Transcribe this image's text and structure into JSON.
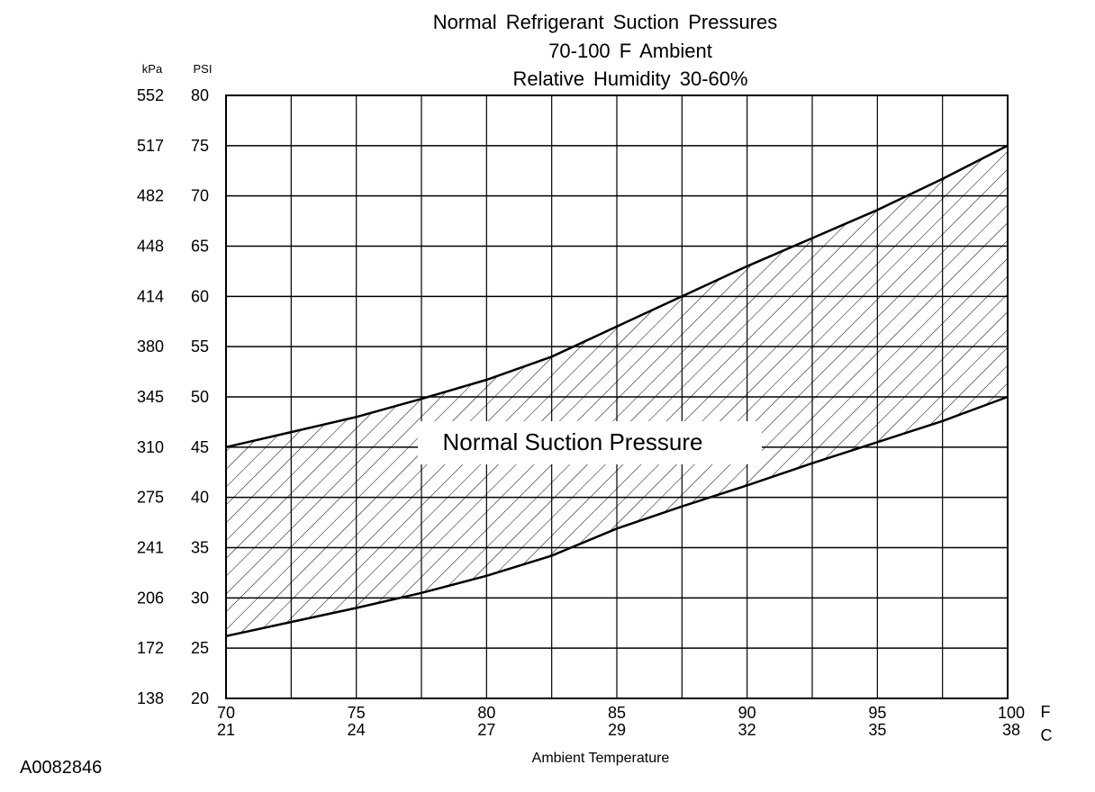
{
  "chart_data": {
    "type": "area",
    "title": "Normal Refrigerant Suction Pressures",
    "subtitle": [
      "70-100 F Ambient",
      "Relative Humidity 30-60%"
    ],
    "xlabel": "Ambient Temperature",
    "x_unit_primary": "F",
    "x_unit_secondary": "C",
    "x_ticks": [
      {
        "f": "70",
        "c": "21"
      },
      {
        "f": "75",
        "c": "24"
      },
      {
        "f": "80",
        "c": "27"
      },
      {
        "f": "85",
        "c": "29"
      },
      {
        "f": "90",
        "c": "32"
      },
      {
        "f": "95",
        "c": "35"
      },
      {
        "f": "100",
        "c": "38"
      }
    ],
    "xlim": [
      70,
      100
    ],
    "y_unit_primary": "PSI",
    "y_unit_secondary": "kPa",
    "y_ticks": [
      {
        "psi": "20",
        "kpa": "138"
      },
      {
        "psi": "25",
        "kpa": "172"
      },
      {
        "psi": "30",
        "kpa": "206"
      },
      {
        "psi": "35",
        "kpa": "241"
      },
      {
        "psi": "40",
        "kpa": "275"
      },
      {
        "psi": "45",
        "kpa": "310"
      },
      {
        "psi": "50",
        "kpa": "345"
      },
      {
        "psi": "55",
        "kpa": "380"
      },
      {
        "psi": "60",
        "kpa": "414"
      },
      {
        "psi": "65",
        "kpa": "448"
      },
      {
        "psi": "70",
        "kpa": "482"
      },
      {
        "psi": "75",
        "kpa": "517"
      },
      {
        "psi": "80",
        "kpa": "552"
      }
    ],
    "ylim": [
      20,
      80
    ],
    "grid": true,
    "band_label": "Normal Suction Pressure",
    "upper_bound": {
      "x": [
        70,
        72.5,
        75,
        77.5,
        80,
        82.5,
        85,
        87.5,
        90,
        92.5,
        95,
        97.5,
        100
      ],
      "y": [
        45,
        46.5,
        48,
        49.8,
        51.7,
        54,
        57,
        60,
        63,
        65.8,
        68.6,
        71.7,
        75
      ]
    },
    "lower_bound": {
      "x": [
        70,
        72.5,
        75,
        77.5,
        80,
        82.5,
        85,
        87.5,
        90,
        92.5,
        95,
        97.5,
        100
      ],
      "y": [
        26.2,
        27.6,
        29,
        30.5,
        32.2,
        34.2,
        36.9,
        39.1,
        41.2,
        43.4,
        45.5,
        47.6,
        50
      ]
    }
  },
  "footer": {
    "figure_id": "A0082846"
  }
}
